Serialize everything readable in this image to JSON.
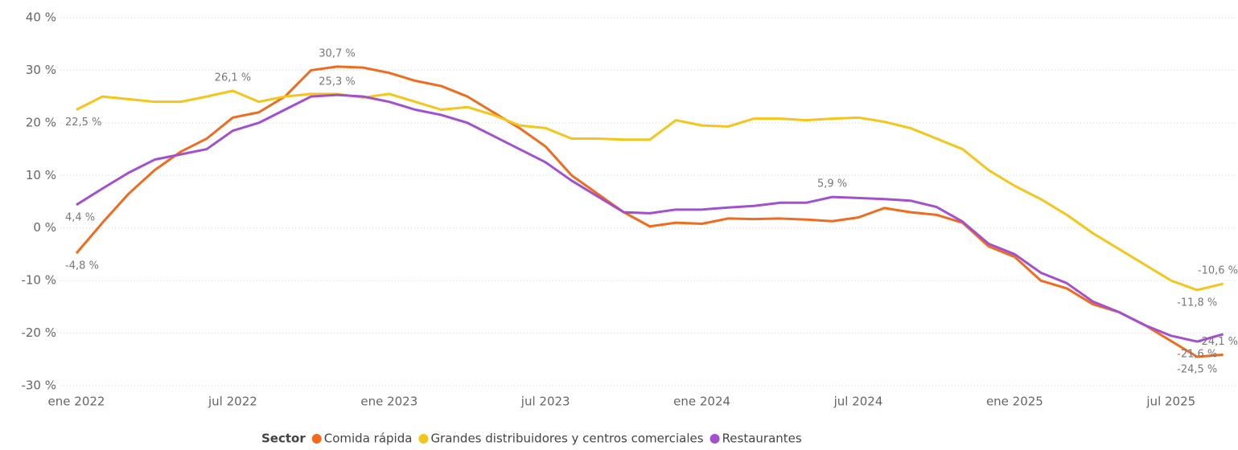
{
  "chart_data": {
    "type": "line",
    "categories": [
      "ene 2022",
      null,
      null,
      null,
      null,
      null,
      "jul 2022",
      null,
      null,
      null,
      null,
      null,
      "ene 2023",
      null,
      null,
      null,
      null,
      null,
      "jul 2023",
      null,
      null,
      null,
      null,
      null,
      "ene 2024",
      null,
      null,
      null,
      null,
      null,
      "jul 2024",
      null,
      null,
      null,
      null,
      null,
      "ene 2025",
      null,
      null,
      null,
      null,
      null,
      "jul 2025",
      null,
      null
    ],
    "series": [
      {
        "name": "Comida rápida",
        "color": "#f26b1d",
        "values": [
          -4.8,
          1,
          6.5,
          11,
          14.5,
          17,
          21,
          22,
          25,
          30,
          30.7,
          30.5,
          29.5,
          28,
          27,
          25,
          22,
          19,
          15.5,
          10,
          6.5,
          3,
          0.3,
          1,
          0.8,
          1.8,
          1.7,
          1.8,
          1.6,
          1.3,
          2,
          3.8,
          3,
          2.5,
          1,
          -3.5,
          -5.5,
          -10,
          -11.5,
          -14.5,
          -16,
          -18.5,
          -21.5,
          -24.5,
          -24.1
        ],
        "value_labels": [
          "-4,8 %",
          null,
          null,
          null,
          null,
          null,
          null,
          null,
          null,
          null,
          "30,7 %",
          null,
          null,
          null,
          null,
          null,
          null,
          null,
          null,
          null,
          null,
          null,
          null,
          null,
          null,
          null,
          null,
          null,
          null,
          null,
          null,
          null,
          null,
          null,
          null,
          null,
          null,
          null,
          null,
          null,
          null,
          null,
          null,
          "-24,5 %",
          "-24,1 %"
        ]
      },
      {
        "name": "Grandes distribuidores y centros comerciales",
        "color": "#f5c518",
        "values": [
          22.5,
          25,
          24.5,
          24,
          24,
          25,
          26.1,
          24,
          25,
          25.5,
          25.5,
          24.8,
          25.5,
          24,
          22.5,
          23,
          21.5,
          19.5,
          19,
          17,
          17,
          16.8,
          16.8,
          20.5,
          19.5,
          19.3,
          20.8,
          20.8,
          20.5,
          20.8,
          21,
          20.2,
          19,
          17,
          15,
          11,
          8,
          5.5,
          2.5,
          -1,
          -4,
          -7,
          -10,
          -11.8,
          -10.6
        ],
        "value_labels": [
          "22,5 %",
          null,
          null,
          null,
          null,
          null,
          "26,1 %",
          null,
          null,
          null,
          null,
          null,
          null,
          null,
          null,
          null,
          null,
          null,
          null,
          null,
          null,
          null,
          null,
          null,
          null,
          null,
          null,
          null,
          null,
          null,
          null,
          null,
          null,
          null,
          null,
          null,
          null,
          null,
          null,
          null,
          null,
          null,
          null,
          "-11,8 %",
          "-10,6 %"
        ]
      },
      {
        "name": "Restaurantes",
        "color": "#a24fd0",
        "values": [
          4.4,
          7.5,
          10.5,
          13,
          14,
          15,
          18.5,
          20,
          22.5,
          25,
          25.3,
          25,
          24,
          22.5,
          21.5,
          20,
          17.5,
          15,
          12.5,
          9,
          6,
          3,
          2.8,
          3.5,
          3.5,
          3.9,
          4.2,
          4.8,
          4.8,
          5.9,
          5.7,
          5.5,
          5.2,
          4,
          1.2,
          -3,
          -5,
          -8.5,
          -10.5,
          -14,
          -16,
          -18.5,
          -20.5,
          -21.6,
          -20.2
        ],
        "value_labels": [
          "4,4 %",
          null,
          null,
          null,
          null,
          null,
          null,
          null,
          null,
          null,
          "25,3 %",
          null,
          null,
          null,
          null,
          null,
          null,
          null,
          null,
          null,
          null,
          null,
          null,
          null,
          null,
          null,
          null,
          null,
          null,
          "5,9 %",
          null,
          null,
          null,
          null,
          null,
          null,
          null,
          null,
          null,
          null,
          null,
          null,
          null,
          "-21,6 %",
          null
        ]
      }
    ],
    "ylim": [
      -30,
      40
    ],
    "yticks": [
      {
        "value": -30,
        "label": "-30 %"
      },
      {
        "value": -20,
        "label": "-20 %"
      },
      {
        "value": -10,
        "label": "-10 %"
      },
      {
        "value": 0,
        "label": "0 %"
      },
      {
        "value": 10,
        "label": "10 %"
      },
      {
        "value": 20,
        "label": "20 %"
      },
      {
        "value": 30,
        "label": "30 %"
      },
      {
        "value": 40,
        "label": "40 %"
      }
    ],
    "grid": true,
    "legend_title": "Sector",
    "legend_position": "bottom"
  }
}
